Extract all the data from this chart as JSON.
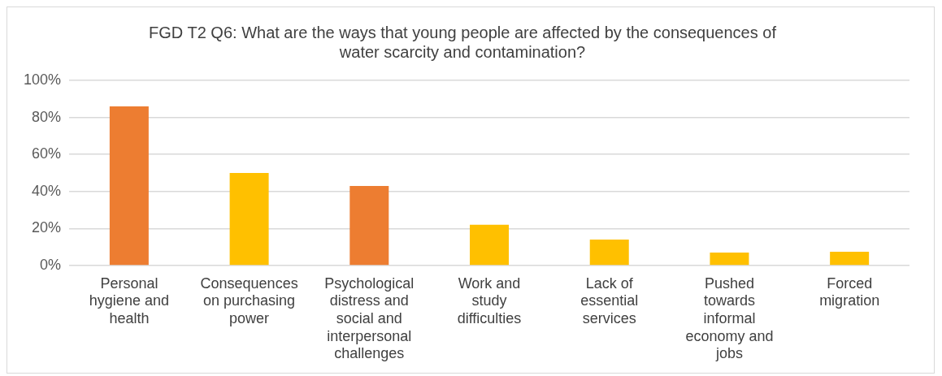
{
  "chart_data": {
    "type": "bar",
    "title": "FGD T2 Q6: What are the ways that young people are affected by the consequences of water scarcity and contamination?",
    "categories": [
      "Personal hygiene and health",
      "Consequences on purchasing power",
      "Psychological distress and social and interpersonal challenges",
      "Work and study difficulties",
      "Lack of essential services",
      "Pushed towards informal economy and jobs",
      "Forced migration"
    ],
    "values": [
      86,
      50,
      43,
      22,
      14,
      7,
      7.5
    ],
    "colors": [
      "#ed7d31",
      "#ffc000",
      "#ed7d31",
      "#ffc000",
      "#ffc000",
      "#ffc000",
      "#ffc000"
    ],
    "ylim": [
      0,
      100
    ],
    "yticks": [
      {
        "value": 0,
        "label": "0%"
      },
      {
        "value": 20,
        "label": "20%"
      },
      {
        "value": 40,
        "label": "40%"
      },
      {
        "value": 60,
        "label": "60%"
      },
      {
        "value": 80,
        "label": "80%"
      },
      {
        "value": 100,
        "label": "100%"
      }
    ],
    "grid": "y",
    "legend": false
  }
}
